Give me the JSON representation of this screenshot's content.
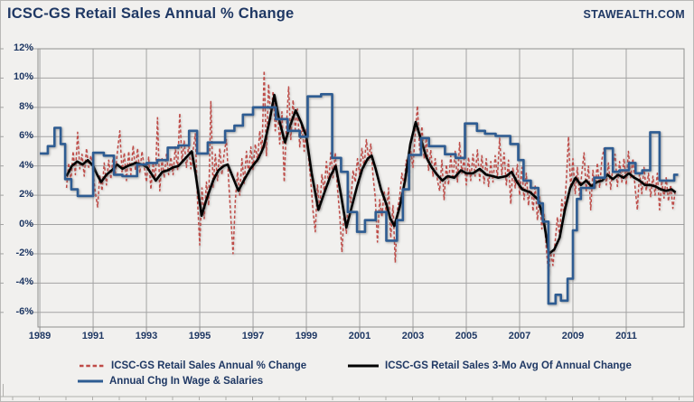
{
  "header": {
    "title": "ICSC-GS Retail Sales Annual % Change",
    "watermark": "STAWEALTH.COM"
  },
  "colors": {
    "red_series": "#bf4b47",
    "black_series": "#000000",
    "blue_series": "#2e5c92",
    "grid": "#a3a3a3",
    "text": "#1f3864",
    "background": "#f1f0ee"
  },
  "legend": {
    "items": [
      {
        "label": "ICSC-GS Retail Sales Annual % Change",
        "color": "#bf4b47",
        "line_style": "dashed"
      },
      {
        "label": "ICSC-GS Retail Sales 3-Mo Avg Of Annual Change",
        "color": "#000000",
        "line_style": "solid"
      },
      {
        "label": "Annual Chg In Wage & Salaries",
        "color": "#2e5c92",
        "line_style": "solid"
      }
    ]
  },
  "chart_data": {
    "type": "line",
    "title": "ICSC-GS Retail Sales Annual % Change",
    "xlabel": "",
    "ylabel": "",
    "grid": true,
    "legend_position": "bottom",
    "x_axis": {
      "range": [
        1988.93,
        2013.17
      ],
      "tick_values": [
        1989,
        1991,
        1993,
        1995,
        1997,
        1999,
        2001,
        2003,
        2005,
        2007,
        2009,
        2011
      ],
      "tick_labels": [
        "1989",
        "1991",
        "1993",
        "1995",
        "1997",
        "1999",
        "2001",
        "2003",
        "2005",
        "2007",
        "2009",
        "2011"
      ]
    },
    "y_axis": {
      "range": [
        -7,
        12
      ],
      "unit": "%",
      "tick_values": [
        12,
        10,
        8,
        6,
        4,
        2,
        0,
        -2,
        -4,
        -6
      ],
      "tick_labels": [
        "12%",
        "10%",
        "8%",
        "6%",
        "4%",
        "2%",
        "0%",
        "-2%",
        "-4%",
        "-6%"
      ]
    },
    "series": [
      {
        "name": "ICSC-GS Retail Sales Annual % Change",
        "color": "#bf4b47",
        "line_style": "dashed",
        "x_start": 1990.0,
        "x_step_years": 0.0833333,
        "values": [
          2.5,
          4.2,
          3.0,
          5.0,
          3.4,
          6.3,
          3.8,
          4.8,
          3.3,
          5.2,
          3.9,
          4.7,
          3.5,
          2.2,
          1.2,
          3.4,
          2.3,
          4.2,
          2.7,
          4.4,
          3.1,
          4.7,
          3.4,
          5.1,
          6.4,
          3.6,
          4.9,
          3.0,
          5.0,
          3.4,
          5.4,
          3.7,
          5.2,
          3.5,
          5.0,
          3.9,
          2.9,
          4.6,
          2.4,
          4.2,
          3.0,
          7.3,
          2.3,
          4.5,
          3.2,
          4.8,
          3.4,
          4.6,
          3.4,
          5.3,
          3.7,
          7.6,
          4.3,
          5.7,
          3.9,
          5.5,
          3.8,
          5.1,
          6.2,
          1.6,
          -1.4,
          2.5,
          0.4,
          2.9,
          1.3,
          8.4,
          2.5,
          4.8,
          3.0,
          5.2,
          3.4,
          4.9,
          5.8,
          3.0,
          0.4,
          -2.0,
          1.6,
          3.6,
          2.0,
          4.5,
          2.8,
          5.0,
          3.4,
          5.3,
          3.7,
          5.5,
          4.3,
          6.4,
          4.9,
          10.5,
          4.7,
          9.6,
          7.2,
          9.1,
          6.4,
          7.9,
          5.5,
          7.7,
          2.9,
          6.7,
          9.4,
          5.8,
          8.5,
          6.5,
          7.9,
          5.3,
          6.9,
          5.0,
          6.5,
          4.5,
          3.0,
          0.9,
          -0.5,
          2.7,
          1.0,
          3.4,
          2.3,
          4.3,
          2.8,
          4.9,
          3.2,
          4.9,
          2.5,
          0.7,
          -1.9,
          0.9,
          -0.6,
          2.3,
          1.5,
          3.7,
          2.9,
          4.5,
          3.4,
          5.2,
          3.9,
          5.8,
          4.4,
          5.5,
          3.3,
          1.9,
          -1.2,
          1.7,
          0.5,
          2.3,
          0.7,
          2.5,
          -0.9,
          1.3,
          -2.6,
          1.0,
          1.9,
          3.5,
          2.7,
          4.4,
          3.3,
          5.0,
          3.9,
          6.2,
          8.1,
          5.1,
          6.7,
          4.5,
          5.9,
          3.7,
          5.1,
          3.3,
          4.5,
          3.0,
          2.3,
          4.4,
          1.7,
          4.1,
          2.7,
          4.7,
          3.1,
          5.0,
          2.9,
          5.6,
          3.5,
          4.5,
          2.7,
          4.6,
          3.0,
          4.8,
          3.3,
          5.1,
          3.0,
          4.7,
          2.8,
          4.5,
          2.6,
          4.3,
          2.9,
          4.7,
          3.2,
          5.9,
          3.4,
          4.9,
          2.7,
          4.4,
          1.4,
          3.9,
          2.5,
          4.1,
          2.0,
          3.9,
          1.7,
          3.5,
          1.3,
          3.1,
          0.9,
          2.7,
          0.3,
          1.9,
          -0.3,
          0.7,
          -1.6,
          -3.4,
          -1.9,
          -2.8,
          -1.2,
          0.5,
          -0.8,
          1.7,
          0.7,
          2.9,
          6.0,
          2.5,
          4.5,
          2.1,
          3.9,
          1.9,
          3.5,
          4.9,
          2.3,
          4.0,
          1.0,
          3.7,
          2.4,
          4.2,
          2.5,
          4.4,
          5.2,
          2.7,
          4.2,
          2.4,
          4.0,
          4.8,
          2.6,
          4.3,
          2.9,
          4.5,
          2.7,
          5.0,
          3.2,
          4.5,
          2.5,
          1.0,
          3.6,
          2.1,
          3.9,
          2.3,
          3.5,
          1.9,
          3.3,
          2.0,
          3.5,
          1.0,
          3.0,
          1.8,
          3.2,
          1.6,
          2.7,
          1.1,
          2.2
        ]
      },
      {
        "name": "ICSC-GS Retail Sales 3-Mo Avg Of Annual Change",
        "color": "#000000",
        "line_style": "solid",
        "points": [
          [
            1990.0,
            3.3
          ],
          [
            1990.2,
            4.0
          ],
          [
            1990.4,
            4.3
          ],
          [
            1990.6,
            4.1
          ],
          [
            1990.8,
            4.4
          ],
          [
            1991.0,
            4.0
          ],
          [
            1991.15,
            3.4
          ],
          [
            1991.3,
            2.9
          ],
          [
            1991.5,
            3.4
          ],
          [
            1991.7,
            3.7
          ],
          [
            1991.9,
            4.1
          ],
          [
            1992.1,
            3.8
          ],
          [
            1992.3,
            4.0
          ],
          [
            1992.6,
            4.2
          ],
          [
            1992.85,
            4.1
          ],
          [
            1993.03,
            3.9
          ],
          [
            1993.35,
            3.0
          ],
          [
            1993.6,
            3.6
          ],
          [
            1993.8,
            3.7
          ],
          [
            1994.0,
            3.9
          ],
          [
            1994.2,
            4.0
          ],
          [
            1994.45,
            4.5
          ],
          [
            1994.7,
            5.0
          ],
          [
            1994.85,
            3.4
          ],
          [
            1995.07,
            0.6
          ],
          [
            1995.25,
            1.7
          ],
          [
            1995.5,
            3.0
          ],
          [
            1995.7,
            3.7
          ],
          [
            1995.9,
            4.0
          ],
          [
            1996.05,
            4.1
          ],
          [
            1996.25,
            3.2
          ],
          [
            1996.45,
            2.3
          ],
          [
            1996.65,
            3.0
          ],
          [
            1996.9,
            3.8
          ],
          [
            1997.2,
            4.5
          ],
          [
            1997.4,
            5.3
          ],
          [
            1997.6,
            6.9
          ],
          [
            1997.8,
            8.85
          ],
          [
            1998.0,
            7.0
          ],
          [
            1998.2,
            5.6
          ],
          [
            1998.4,
            6.8
          ],
          [
            1998.6,
            7.8
          ],
          [
            1998.8,
            7.0
          ],
          [
            1999.0,
            6.0
          ],
          [
            1999.2,
            3.5
          ],
          [
            1999.45,
            1.0
          ],
          [
            1999.7,
            2.3
          ],
          [
            1999.9,
            3.3
          ],
          [
            2000.1,
            4.0
          ],
          [
            2000.3,
            2.0
          ],
          [
            2000.5,
            -0.2
          ],
          [
            2000.7,
            1.2
          ],
          [
            2000.9,
            2.6
          ],
          [
            2001.1,
            3.8
          ],
          [
            2001.3,
            4.5
          ],
          [
            2001.45,
            4.7
          ],
          [
            2001.6,
            3.8
          ],
          [
            2001.8,
            2.4
          ],
          [
            2002.0,
            1.4
          ],
          [
            2002.15,
            0.4
          ],
          [
            2002.3,
            -0.1
          ],
          [
            2002.5,
            1.2
          ],
          [
            2002.7,
            3.0
          ],
          [
            2002.9,
            5.5
          ],
          [
            2003.1,
            7.0
          ],
          [
            2003.3,
            5.8
          ],
          [
            2003.5,
            4.6
          ],
          [
            2003.7,
            3.9
          ],
          [
            2003.9,
            3.4
          ],
          [
            2004.1,
            3.0
          ],
          [
            2004.3,
            3.3
          ],
          [
            2004.55,
            3.2
          ],
          [
            2004.8,
            3.7
          ],
          [
            2005.0,
            3.5
          ],
          [
            2005.25,
            3.5
          ],
          [
            2005.5,
            3.8
          ],
          [
            2005.75,
            3.4
          ],
          [
            2006.0,
            3.3
          ],
          [
            2006.2,
            3.2
          ],
          [
            2006.5,
            3.3
          ],
          [
            2006.7,
            3.6
          ],
          [
            2006.9,
            2.9
          ],
          [
            2007.1,
            2.4
          ],
          [
            2007.4,
            2.2
          ],
          [
            2007.7,
            1.7
          ],
          [
            2007.9,
            0.3
          ],
          [
            2008.1,
            -2.0
          ],
          [
            2008.3,
            -1.7
          ],
          [
            2008.5,
            -0.9
          ],
          [
            2008.7,
            1.0
          ],
          [
            2008.9,
            2.5
          ],
          [
            2009.1,
            3.2
          ],
          [
            2009.3,
            2.7
          ],
          [
            2009.5,
            3.0
          ],
          [
            2009.7,
            2.6
          ],
          [
            2009.9,
            2.9
          ],
          [
            2010.1,
            3.0
          ],
          [
            2010.3,
            3.4
          ],
          [
            2010.5,
            3.1
          ],
          [
            2010.7,
            3.4
          ],
          [
            2010.9,
            3.2
          ],
          [
            2011.1,
            3.5
          ],
          [
            2011.3,
            3.2
          ],
          [
            2011.5,
            3.0
          ],
          [
            2011.7,
            2.7
          ],
          [
            2011.9,
            2.7
          ],
          [
            2012.1,
            2.6
          ],
          [
            2012.3,
            2.4
          ],
          [
            2012.5,
            2.3
          ],
          [
            2012.7,
            2.4
          ],
          [
            2012.85,
            2.2
          ]
        ]
      },
      {
        "name": "Annual Chg In Wage & Salaries",
        "color": "#2e5c92",
        "line_style": "solid",
        "step": true,
        "x_end": 2012.95,
        "steps": [
          [
            1989.0,
            4.85
          ],
          [
            1989.3,
            5.35
          ],
          [
            1989.55,
            6.6
          ],
          [
            1989.78,
            5.5
          ],
          [
            1989.95,
            3.1
          ],
          [
            1990.18,
            2.4
          ],
          [
            1990.42,
            1.95
          ],
          [
            1991.0,
            4.9
          ],
          [
            1991.4,
            4.7
          ],
          [
            1991.78,
            3.4
          ],
          [
            1992.1,
            3.3
          ],
          [
            1992.65,
            4.1
          ],
          [
            1993.0,
            4.2
          ],
          [
            1993.4,
            4.4
          ],
          [
            1993.8,
            5.25
          ],
          [
            1994.2,
            5.4
          ],
          [
            1994.6,
            6.4
          ],
          [
            1994.9,
            4.85
          ],
          [
            1995.3,
            5.6
          ],
          [
            1995.95,
            6.4
          ],
          [
            1996.3,
            6.75
          ],
          [
            1996.62,
            7.5
          ],
          [
            1997.0,
            8.0
          ],
          [
            1997.85,
            7.2
          ],
          [
            1998.3,
            6.4
          ],
          [
            1998.75,
            6.0
          ],
          [
            1999.05,
            8.75
          ],
          [
            1999.55,
            8.9
          ],
          [
            1999.97,
            4.55
          ],
          [
            2000.3,
            3.6
          ],
          [
            2000.55,
            0.85
          ],
          [
            2000.9,
            -0.5
          ],
          [
            2001.2,
            0.3
          ],
          [
            2001.6,
            0.85
          ],
          [
            2002.0,
            -1.1
          ],
          [
            2002.4,
            0.3
          ],
          [
            2002.62,
            2.4
          ],
          [
            2002.85,
            4.75
          ],
          [
            2003.3,
            5.9
          ],
          [
            2003.6,
            5.35
          ],
          [
            2004.2,
            4.8
          ],
          [
            2004.6,
            4.55
          ],
          [
            2004.95,
            6.9
          ],
          [
            2005.4,
            6.4
          ],
          [
            2005.7,
            6.2
          ],
          [
            2006.1,
            6.05
          ],
          [
            2006.65,
            5.5
          ],
          [
            2006.95,
            4.4
          ],
          [
            2007.15,
            3.0
          ],
          [
            2007.42,
            2.5
          ],
          [
            2007.7,
            1.45
          ],
          [
            2007.87,
            0.2
          ],
          [
            2008.08,
            -5.4
          ],
          [
            2008.35,
            -4.8
          ],
          [
            2008.55,
            -5.2
          ],
          [
            2008.8,
            -3.7
          ],
          [
            2009.0,
            -0.4
          ],
          [
            2009.15,
            1.75
          ],
          [
            2009.3,
            2.5
          ],
          [
            2009.8,
            3.2
          ],
          [
            2010.2,
            5.2
          ],
          [
            2010.5,
            3.6
          ],
          [
            2010.75,
            3.7
          ],
          [
            2011.1,
            4.2
          ],
          [
            2011.35,
            3.5
          ],
          [
            2011.6,
            3.7
          ],
          [
            2011.9,
            6.3
          ],
          [
            2012.25,
            3.0
          ],
          [
            2012.55,
            3.0
          ],
          [
            2012.8,
            3.4
          ]
        ]
      }
    ]
  }
}
